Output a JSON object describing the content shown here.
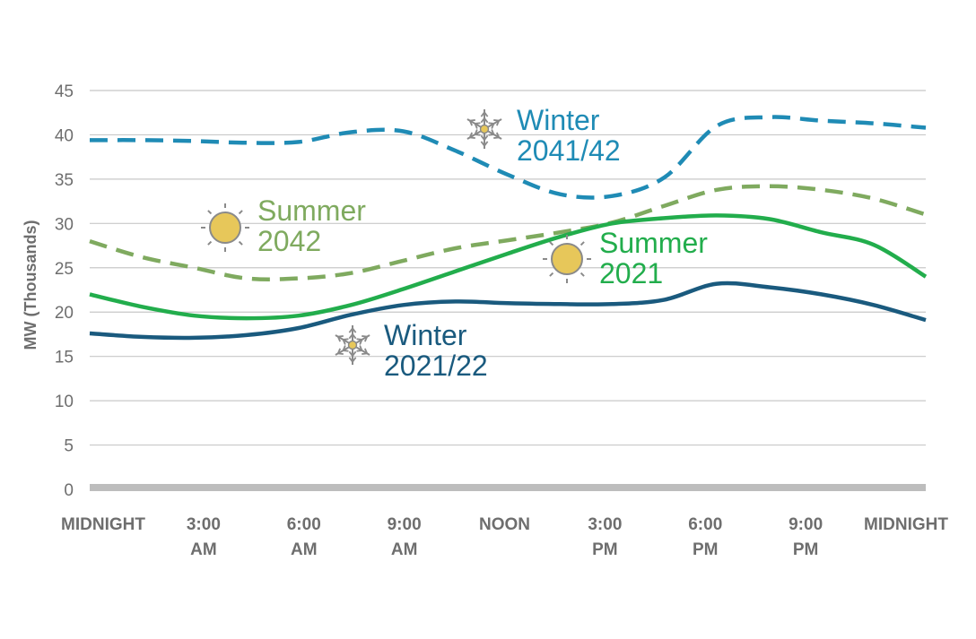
{
  "chart_data": {
    "type": "line",
    "ylabel": "MW (Thousands)",
    "xlabel": "",
    "title": "",
    "ylim": [
      0,
      45
    ],
    "yticks": [
      0,
      5,
      10,
      15,
      20,
      25,
      30,
      35,
      40,
      45
    ],
    "x_hours": [
      0,
      1.5,
      3,
      4.5,
      6,
      7.5,
      9,
      10.5,
      12,
      13.5,
      15,
      16.5,
      18,
      19.5,
      21,
      22.5,
      24
    ],
    "xtick_labels": [
      {
        "line1": "MIDNIGHT",
        "line2": ""
      },
      {
        "line1": "3:00",
        "line2": "AM"
      },
      {
        "line1": "6:00",
        "line2": "AM"
      },
      {
        "line1": "9:00",
        "line2": "AM"
      },
      {
        "line1": "NOON",
        "line2": ""
      },
      {
        "line1": "3:00",
        "line2": "PM"
      },
      {
        "line1": "6:00",
        "line2": "PM"
      },
      {
        "line1": "9:00",
        "line2": "PM"
      },
      {
        "line1": "MIDNIGHT",
        "line2": ""
      }
    ],
    "grid": true,
    "series": [
      {
        "name": "Winter 2041/42",
        "label_lines": [
          "Winter",
          "2041/42"
        ],
        "color": "#1f8bb5",
        "dashed": true,
        "icon": "snowflake-icon",
        "values": [
          39.4,
          39.4,
          39.3,
          39.1,
          39.2,
          40.3,
          40.4,
          38.2,
          35.5,
          33.3,
          33.1,
          35.2,
          41.0,
          42.0,
          41.6,
          41.3,
          40.8
        ]
      },
      {
        "name": "Summer 2042",
        "label_lines": [
          "Summer",
          "2042"
        ],
        "color": "#7faa5f",
        "dashed": true,
        "icon": "sun-icon",
        "values": [
          28.0,
          26.2,
          25.0,
          23.8,
          23.8,
          24.4,
          25.8,
          27.2,
          28.1,
          29.0,
          30.1,
          32.0,
          33.8,
          34.2,
          33.8,
          32.8,
          31.0
        ]
      },
      {
        "name": "Summer 2021",
        "label_lines": [
          "Summer",
          "2021"
        ],
        "color": "#22ad4c",
        "dashed": false,
        "icon": "sun-icon",
        "values": [
          22.0,
          20.6,
          19.6,
          19.3,
          19.6,
          20.8,
          22.6,
          24.6,
          26.6,
          28.5,
          30.0,
          30.6,
          30.9,
          30.5,
          29.0,
          27.6,
          24.0
        ]
      },
      {
        "name": "Winter 2021/22",
        "label_lines": [
          "Winter",
          "2021/22"
        ],
        "color": "#1a5a7e",
        "dashed": false,
        "icon": "snowflake-icon",
        "values": [
          17.6,
          17.2,
          17.1,
          17.4,
          18.2,
          19.7,
          20.8,
          21.2,
          21.0,
          20.9,
          20.9,
          21.4,
          23.2,
          22.8,
          22.0,
          20.8,
          19.1
        ]
      }
    ]
  }
}
